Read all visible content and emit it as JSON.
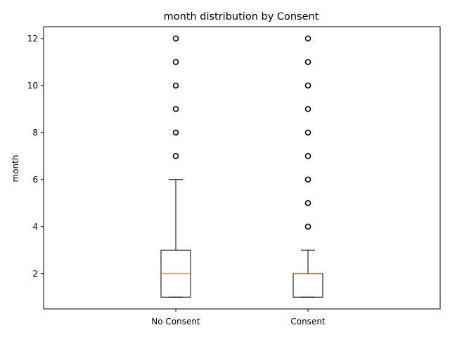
{
  "chart_data": {
    "type": "box",
    "title": "month distribution by Consent",
    "xlabel": "",
    "ylabel": "month",
    "ylim": [
      0.5,
      12.5
    ],
    "yticks": [
      2,
      4,
      6,
      8,
      10,
      12
    ],
    "grid": false,
    "categories": [
      "No Consent",
      "Consent"
    ],
    "boxes": [
      {
        "name": "No Consent",
        "whisker_low": 1,
        "q1": 1,
        "median": 2,
        "q3": 3,
        "whisker_high": 6,
        "outliers": [
          7,
          8,
          9,
          10,
          11,
          12
        ]
      },
      {
        "name": "Consent",
        "whisker_low": 1,
        "q1": 1,
        "median": 2,
        "q3": 2,
        "whisker_high": 3,
        "outliers": [
          4,
          5,
          6,
          7,
          8,
          9,
          10,
          11,
          12
        ]
      }
    ],
    "colors": {
      "box": "#000000",
      "median": "#ff7f0e",
      "outlier": "#000000"
    }
  }
}
